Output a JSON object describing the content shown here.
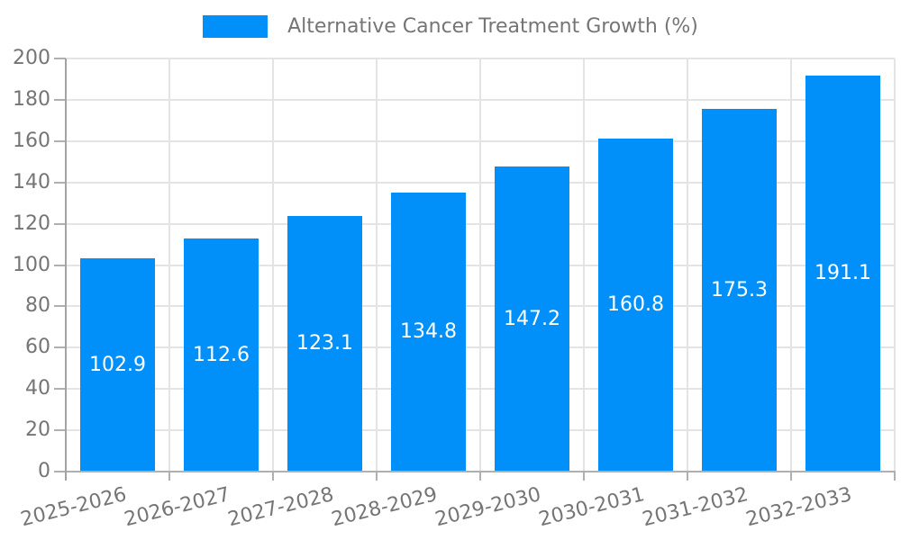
{
  "legend": {
    "label": "Alternative Cancer Treatment Growth (%)"
  },
  "chart_data": {
    "type": "bar",
    "title": "Alternative Cancer Treatment Growth (%)",
    "categories": [
      "2025-2026",
      "2026-2027",
      "2027-2028",
      "2028-2029",
      "2029-2030",
      "2030-2031",
      "2031-2032",
      "2032-2033"
    ],
    "values": [
      102.9,
      112.6,
      123.1,
      134.8,
      147.2,
      160.8,
      175.3,
      191.1
    ],
    "bar_value_labels": [
      "102.9",
      "112.6",
      "123.1",
      "134.8",
      "147.2",
      "160.8",
      "175.3",
      "191.1"
    ],
    "xlabel": "",
    "ylabel": "",
    "ylim": [
      0,
      200
    ],
    "yticks": [
      0,
      20,
      40,
      60,
      80,
      100,
      120,
      140,
      160,
      180,
      200
    ],
    "grid": true,
    "legend_position": "top-center",
    "colors": {
      "bar": "#0190f9",
      "bar_label": "#ffffff",
      "axis_text": "#757575",
      "grid_line": "#e4e4e4",
      "axis_line": "#a8a8a8"
    }
  }
}
